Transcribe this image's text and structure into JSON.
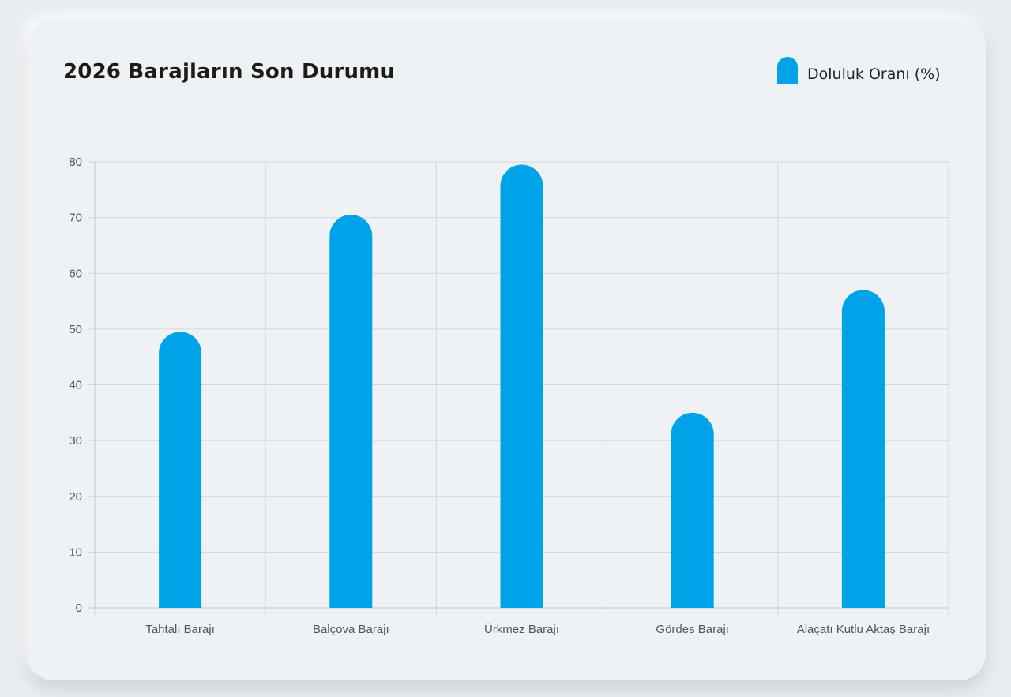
{
  "chart_data": {
    "type": "bar",
    "title": "2026 Barajların Son Durumu",
    "categories": [
      "Tahtalı Barajı",
      "Balçova Barajı",
      "Ürkmez Barajı",
      "Gördes Barajı",
      "Alaçatı Kutlu Aktaş Barajı"
    ],
    "series": [
      {
        "name": "Doluluk Oranı (%)",
        "values": [
          49.5,
          70.5,
          79.5,
          35,
          57
        ]
      }
    ],
    "ylim": [
      0,
      80
    ],
    "yticks": [
      0,
      10,
      20,
      30,
      40,
      50,
      60,
      70,
      80
    ],
    "grid": true,
    "legend_position": "top-right",
    "bar_color": "#00a3e8",
    "xlabel": "",
    "ylabel": ""
  }
}
